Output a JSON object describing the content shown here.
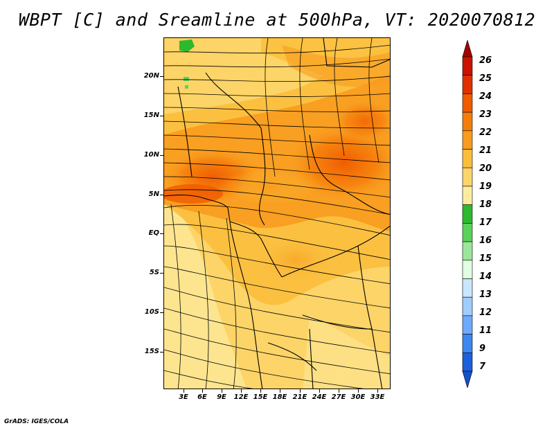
{
  "title": "WBPT [C] and Sreamline at 500hPa, VT: 2020070812",
  "credit": "GrADS: IGES/COLA",
  "map": {
    "lat_labels": [
      "20N",
      "15N",
      "10N",
      "5N",
      "EQ",
      "5S",
      "10S",
      "15S"
    ],
    "lon_labels": [
      "3E",
      "6E",
      "9E",
      "12E",
      "15E",
      "18E",
      "21E",
      "24E",
      "27E",
      "30E",
      "33E"
    ]
  },
  "colorbar": {
    "labels": [
      "26",
      "25",
      "24",
      "23",
      "22",
      "21",
      "20",
      "19",
      "18",
      "17",
      "16",
      "15",
      "14",
      "13",
      "12",
      "11",
      "9",
      "7"
    ],
    "colors": [
      "#a50000",
      "#c81400",
      "#e03000",
      "#f05a00",
      "#f57d0a",
      "#f89b1e",
      "#fbbe3c",
      "#fcd468",
      "#fdeca0",
      "#2db92d",
      "#5ad25a",
      "#9be69b",
      "#e1ffe1",
      "#c8e6ff",
      "#9fcdff",
      "#6eaaff",
      "#3c87f0",
      "#1e5fdc",
      "#1450c8"
    ]
  }
}
